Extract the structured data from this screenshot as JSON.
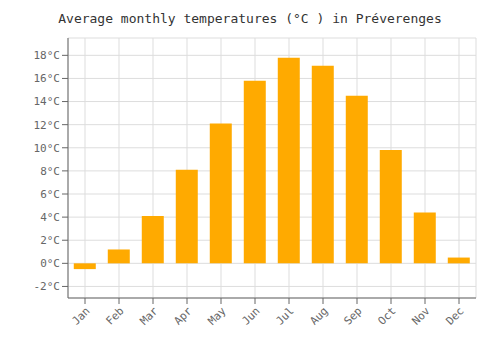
{
  "chart_data": {
    "type": "bar",
    "title": "Average monthly temperatures (°C ) in Préverenges",
    "categories": [
      "Jan",
      "Feb",
      "Mar",
      "Apr",
      "May",
      "Jun",
      "Jul",
      "Aug",
      "Sep",
      "Oct",
      "Nov",
      "Dec"
    ],
    "values": [
      -0.5,
      1.2,
      4.1,
      8.1,
      12.1,
      15.8,
      17.8,
      17.1,
      14.5,
      9.8,
      4.4,
      0.5
    ],
    "color": "#FFAA00",
    "ylim": [
      -3,
      19.5
    ],
    "yticks": [
      {
        "value": -2,
        "label": "-2°C"
      },
      {
        "value": 0,
        "label": "0°C"
      },
      {
        "value": 2,
        "label": "2°C"
      },
      {
        "value": 4,
        "label": "4°C"
      },
      {
        "value": 6,
        "label": "6°C"
      },
      {
        "value": 8,
        "label": "8°C"
      },
      {
        "value": 10,
        "label": "10°C"
      },
      {
        "value": 12,
        "label": "12°C"
      },
      {
        "value": 14,
        "label": "14°C"
      },
      {
        "value": 16,
        "label": "16°C"
      },
      {
        "value": 18,
        "label": "18°C"
      }
    ],
    "grid": true
  }
}
